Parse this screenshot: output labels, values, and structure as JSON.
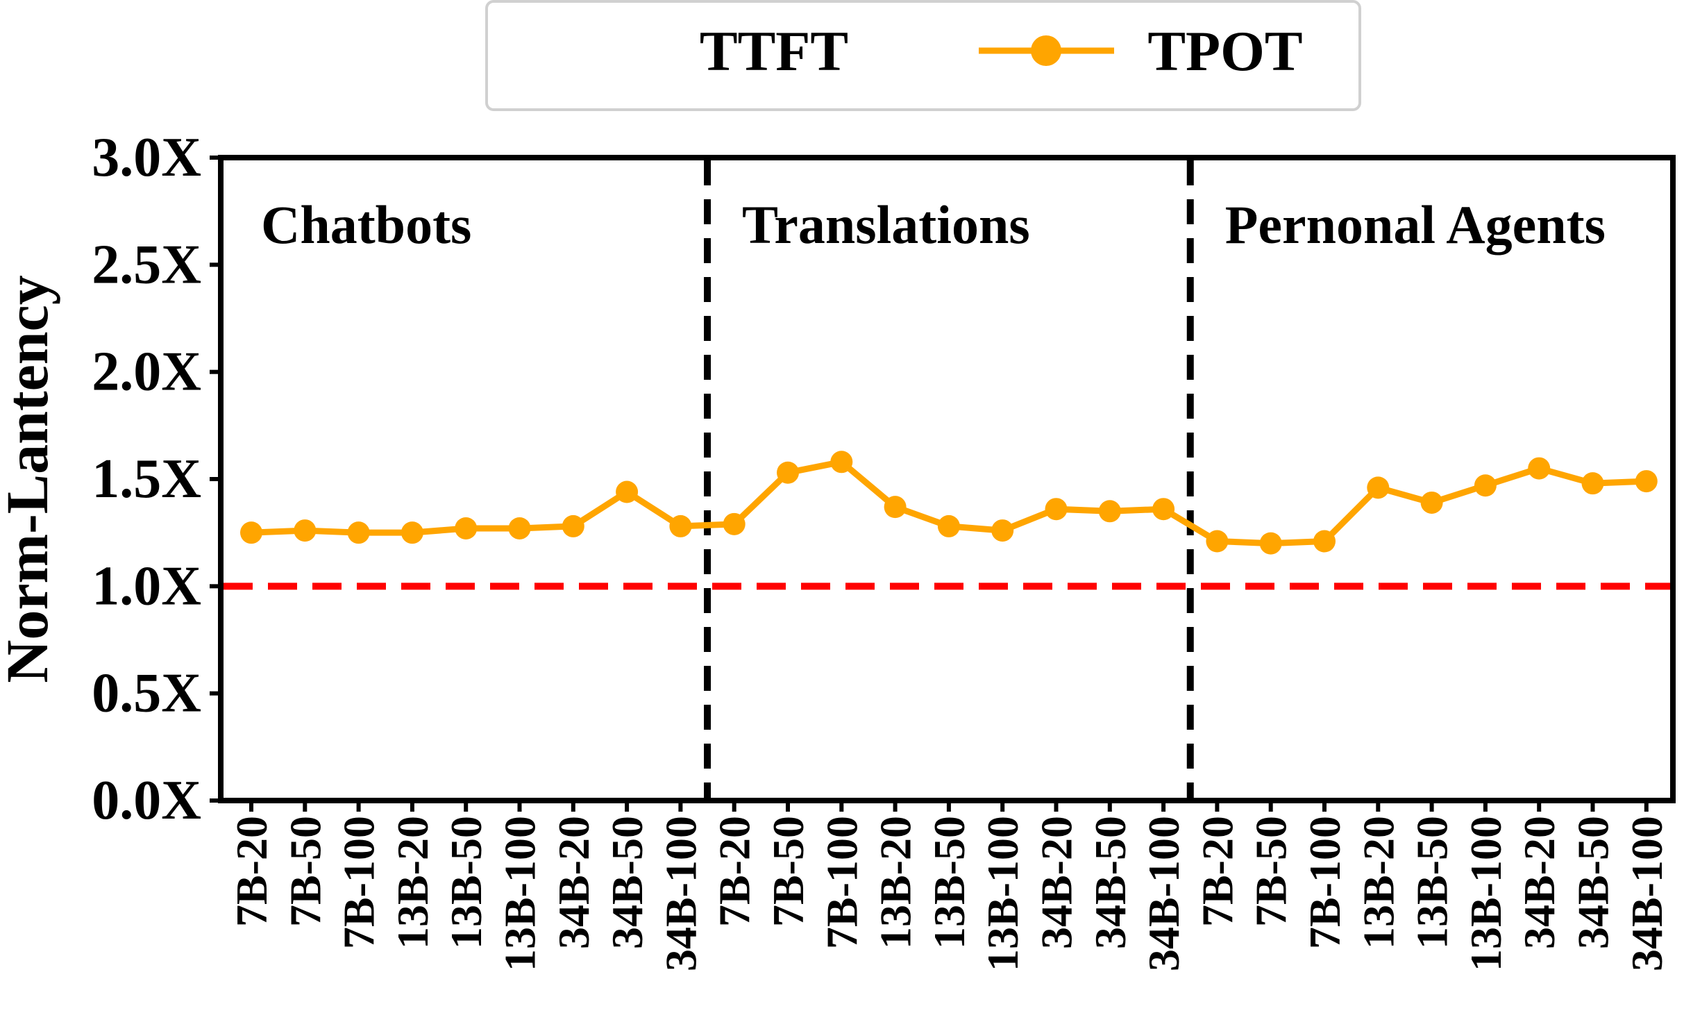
{
  "legend": {
    "items": [
      {
        "label": "TTFT",
        "marker": "none"
      },
      {
        "label": "TPOT",
        "marker": "line-circle"
      }
    ]
  },
  "colors": {
    "tpot": "#FFA500",
    "reference_line": "#FF0000",
    "divider": "#000000"
  },
  "chart_data": {
    "type": "line",
    "title": "",
    "xlabel": "",
    "ylabel": "Norm-Lantency",
    "ylim": [
      0,
      3
    ],
    "yticks": [
      "0.0X",
      "0.5X",
      "1.0X",
      "1.5X",
      "2.0X",
      "2.5X",
      "3.0X"
    ],
    "grid": false,
    "legend_position": "top-center",
    "categories": [
      "7B-20",
      "7B-50",
      "7B-100",
      "13B-20",
      "13B-50",
      "13B-100",
      "34B-20",
      "34B-50",
      "34B-100",
      "7B-20",
      "7B-50",
      "7B-100",
      "13B-20",
      "13B-50",
      "13B-100",
      "34B-20",
      "34B-50",
      "34B-100",
      "7B-20",
      "7B-50",
      "7B-100",
      "13B-20",
      "13B-50",
      "13B-100",
      "34B-20",
      "34B-50",
      "34B-100"
    ],
    "groups": [
      {
        "label": "Chatbots",
        "start": 0,
        "end": 8
      },
      {
        "label": "Translations",
        "start": 9,
        "end": 17
      },
      {
        "label": "Pernonal Agents",
        "start": 18,
        "end": 26
      }
    ],
    "reference_line": {
      "y": 1.0,
      "style": "dashed"
    },
    "series": [
      {
        "name": "TPOT",
        "values": [
          1.25,
          1.26,
          1.25,
          1.25,
          1.27,
          1.27,
          1.28,
          1.44,
          1.28,
          1.29,
          1.53,
          1.58,
          1.37,
          1.28,
          1.26,
          1.36,
          1.35,
          1.36,
          1.21,
          1.2,
          1.21,
          1.46,
          1.39,
          1.47,
          1.55,
          1.48,
          1.49
        ]
      }
    ]
  }
}
